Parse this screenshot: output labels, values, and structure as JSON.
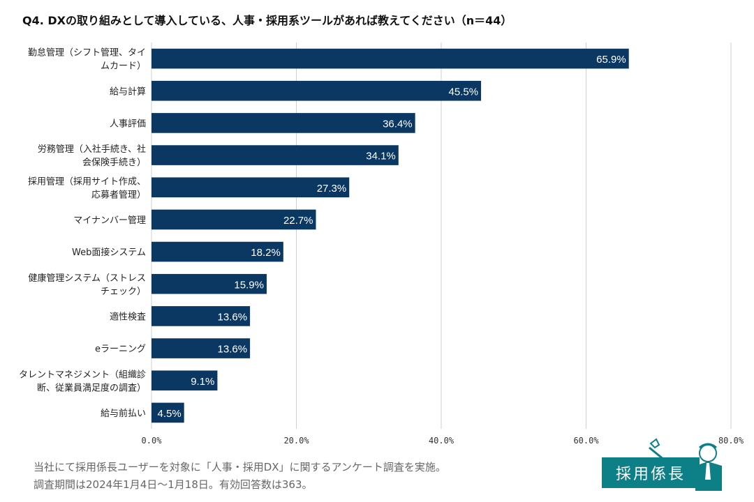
{
  "title": "Q4. DXの取り組みとして導入している、人事・採用系ツールがあれば教えてください（n＝44）",
  "chart_data": {
    "type": "bar",
    "orientation": "horizontal",
    "title": "Q4. DXの取り組みとして導入している、人事・採用系ツールがあれば教えてください（n＝44）",
    "categories": [
      [
        "勤怠管理（シフト管理、タイ",
        "ムカード）"
      ],
      [
        "給与計算"
      ],
      [
        "人事評価"
      ],
      [
        "労務管理（入社手続き、社",
        "会保険手続き）"
      ],
      [
        "採用管理（採用サイト作成、",
        "応募者管理）"
      ],
      [
        "マイナンバー管理"
      ],
      [
        "Web面接システム"
      ],
      [
        "健康管理システム（ストレス",
        "チェック）"
      ],
      [
        "適性検査"
      ],
      [
        "eラーニング"
      ],
      [
        "タレントマネジメント（組織診",
        "断、従業員満足度の調査）"
      ],
      [
        "給与前払い"
      ]
    ],
    "values": [
      65.9,
      45.5,
      36.4,
      34.1,
      27.3,
      22.7,
      18.2,
      15.9,
      13.6,
      13.6,
      9.1,
      4.5
    ],
    "value_labels": [
      "65.9%",
      "45.5%",
      "36.4%",
      "34.1%",
      "27.3%",
      "22.7%",
      "18.2%",
      "15.9%",
      "13.6%",
      "13.6%",
      "9.1%",
      "4.5%"
    ],
    "xlim": [
      0,
      80
    ],
    "ticks": [
      0,
      20,
      40,
      60,
      80
    ],
    "tick_labels": [
      "0.0%",
      "20.0%",
      "40.0%",
      "60.0%",
      "80.0%"
    ],
    "grid": true,
    "bar_color": "#0b3763",
    "label_color": "#ffffff",
    "xlabel": "",
    "ylabel": ""
  },
  "footnotes": [
    "当社にて採用係長ユーザーを対象に「人事・採用DX」に関するアンケート調査を実施。",
    "調査期間は2024年1月4日〜1月18日。有効回答数は363。"
  ],
  "logo": {
    "text": "採用係長",
    "color": "#0d7f86"
  }
}
